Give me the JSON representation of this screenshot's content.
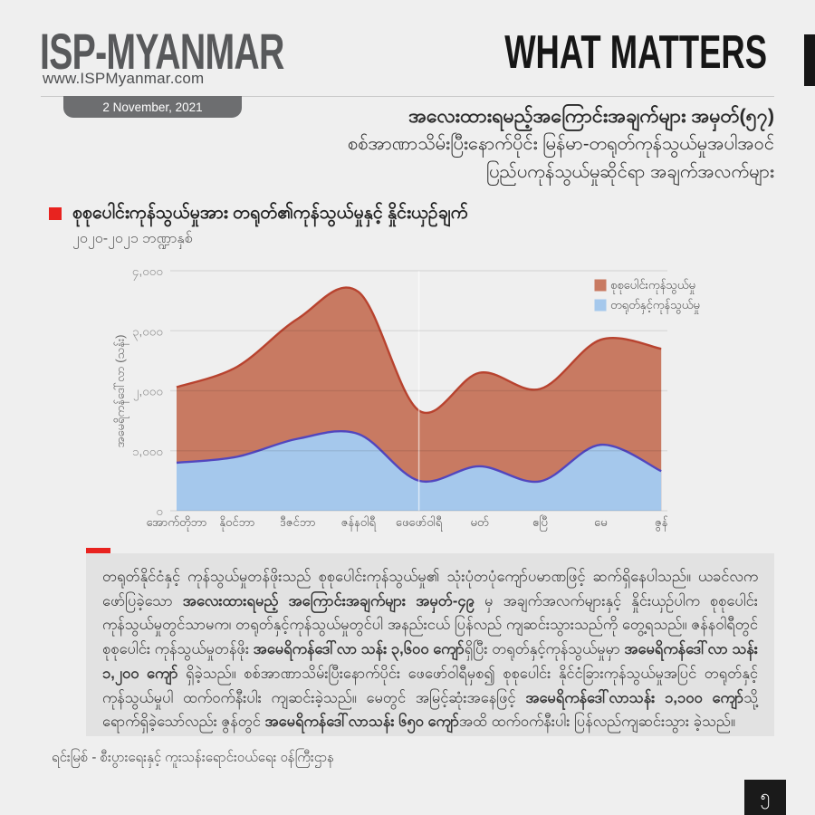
{
  "header": {
    "logo_title": "ISP-MYANMAR",
    "logo_url": "www.ISPMyanmar.com",
    "date_badge": "2 November, 2021",
    "brand_right": "WHAT MATTERS"
  },
  "issue_title": {
    "line1": "အလေးထားရမည့်အကြောင်းအချက်များ အမှတ်(၅၇)",
    "line2": "စစ်အာဏာသိမ်းပြီးနောက်ပိုင်း မြန်မာ-တရုတ်ကုန်သွယ်မှုအပါအဝင်",
    "line3": "ပြည်ပကုန်သွယ်မှုဆိုင်ရာ အချက်အလက်များ"
  },
  "chart_data": {
    "type": "area",
    "title": "စုစုပေါင်းကုန်သွယ်မှုအား တရုတ်၏ကုန်သွယ်မှုနှင့် နှိုင်းယှဉ်ချက်",
    "subtitle": "၂၀၂၀-၂၀၂၁ ဘဏ္ဍာနှစ်",
    "ylabel": "အမေရိကန်ဒေါ်လာ (သန်း)",
    "categories": [
      "အောက်တိုဘာ",
      "နိုဝင်ဘာ",
      "ဒီဇင်ဘာ",
      "ဇန်နဝါရီ",
      "ဖေဖော်ဝါရီ",
      "မတ်",
      "ဧပြီ",
      "မေ",
      "ဇွန်"
    ],
    "series": [
      {
        "name": "စုစုပေါင်းကုန်သွယ်မှု",
        "fill_color": "#c87a62",
        "line_color": "#b8432f",
        "values": [
          2060,
          2400,
          3200,
          3650,
          1670,
          2300,
          2030,
          2850,
          2700
        ]
      },
      {
        "name": "တရုတ်နှင့်ကုန်သွယ်မှု",
        "fill_color": "#a5c8ec",
        "line_color": "#5246be",
        "values": [
          800,
          900,
          1200,
          1280,
          500,
          740,
          490,
          1100,
          660
        ]
      }
    ],
    "ylim": [
      0,
      4000
    ],
    "yticks": [
      0,
      1000,
      2000,
      3000,
      4000
    ],
    "ytick_labels": [
      "၀",
      "၁,၀၀၀",
      "၂,၀၀၀",
      "၃,၀၀၀",
      "၄,၀၀၀"
    ],
    "grid": true,
    "legend_position": "top-right",
    "units": "USD million"
  },
  "body": {
    "paragraph": [
      {
        "text": "တရုတ်နိုင်ငံနှင့် ကုန်သွယ်မှုတန်ဖိုးသည် စုစုပေါင်းကုန်သွယ်မှု၏ သုံးပုံတပုံကျော်ပမာဏဖြင့် ဆက်ရှိနေပါသည်။ ယခင်လက ဖော်ပြခဲ့သော ",
        "bold": false
      },
      {
        "text": "အလေးထားရမည့် အကြောင်းအချက်များ အမှတ်-၄၉",
        "bold": true
      },
      {
        "text": " မှ အချက်အလက်များနှင့် နှိုင်းယှဉ်ပါက စုစုပေါင်း ကုန်သွယ်မှုတွင်သာမက၊ တရုတ်နှင့်ကုန်သွယ်မှုတွင်ပါ အနည်းငယ် ပြန်လည် ကျဆင်းသွားသည်ကို တွေ့ရသည်။ ဇန်နဝါရီတွင် စုစုပေါင်း ကုန်သွယ်မှုတန်ဖိုး ",
        "bold": false
      },
      {
        "text": "အမေရိကန်ဒေါ်လာ သန်း ၃,၆၀၀ ကျော်",
        "bold": true
      },
      {
        "text": "ရှိပြီး တရုတ်နှင့်ကုန်သွယ်မှုမှာ ",
        "bold": false
      },
      {
        "text": "အမေရိကန်ဒေါ်လာ သန်း ၁,၂၀၀ ကျော်",
        "bold": true
      },
      {
        "text": " ရှိခဲ့သည်။ စစ်အာဏာသိမ်းပြီးနောက်ပိုင်း ဖေဖော်ဝါရီမှစ၍ စုစုပေါင်း နိုင်ငံခြားကုန်သွယ်မှုအပြင် တရုတ်နှင့်ကုန်သွယ်မှုပါ ထက်ဝက်နီးပါး ကျဆင်းခဲ့သည်။ မေတွင် အမြင့်ဆုံးအနေဖြင့် ",
        "bold": false
      },
      {
        "text": "အမေရိကန်ဒေါ်လာသန်း ၁,၁၀၀ ကျော်",
        "bold": true
      },
      {
        "text": "သို့ ရောက်ရှိခဲ့သော်လည်း ဇွန်တွင် ",
        "bold": false
      },
      {
        "text": "အမေရိကန်ဒေါ်လာသန်း ၆၅၀ ကျော်",
        "bold": true
      },
      {
        "text": "အထိ ထက်ဝက်နီးပါး ပြန်လည်ကျဆင်းသွား ခဲ့သည်။",
        "bold": false
      }
    ]
  },
  "footer": {
    "source": "ရင်းမြစ် -   စီးပွားရေးနှင့် ကူးသန်းရောင်းဝယ်ရေး ဝန်ကြီးဌာန",
    "page_number": "၅"
  },
  "colors": {
    "accent_red": "#e8231f",
    "total_area": "#c87a62",
    "total_line": "#b8432f",
    "china_area": "#a5c8ec",
    "china_line": "#5246be",
    "page_bg": "#efefef",
    "block_bg": "#e2e2e2"
  }
}
